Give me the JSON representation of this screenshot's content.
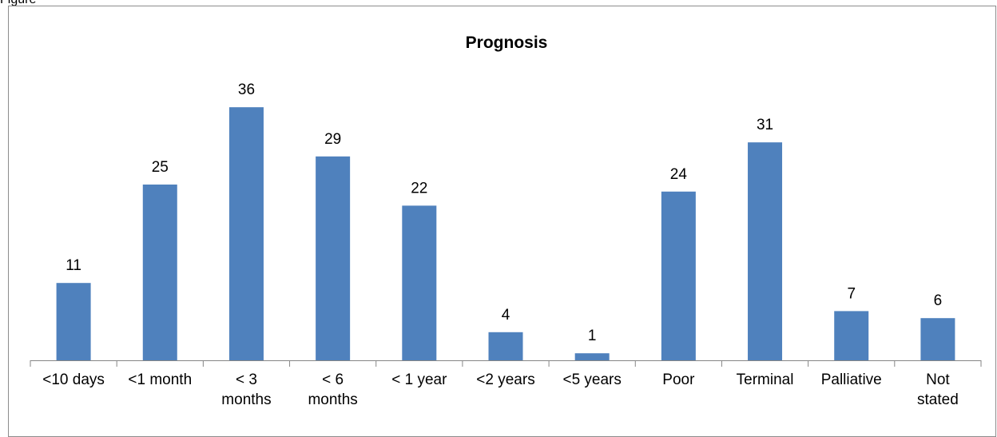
{
  "figure": {
    "label": "Figure"
  },
  "chart_data": {
    "type": "bar",
    "title": "Prognosis",
    "xlabel": "",
    "ylabel": "",
    "categories": [
      "<10 days",
      "<1 month",
      "< 3 months",
      "< 6 months",
      "< 1 year",
      "<2 years",
      "<5 years",
      "Poor",
      "Terminal",
      "Palliative",
      "Not stated"
    ],
    "values": [
      11,
      25,
      36,
      29,
      22,
      4,
      1,
      24,
      31,
      7,
      6
    ],
    "ylim": [
      0,
      40
    ],
    "data_labels": true,
    "grid": false,
    "legend": "none",
    "bar_color": "#4f81bd",
    "axis_color": "#868686"
  }
}
